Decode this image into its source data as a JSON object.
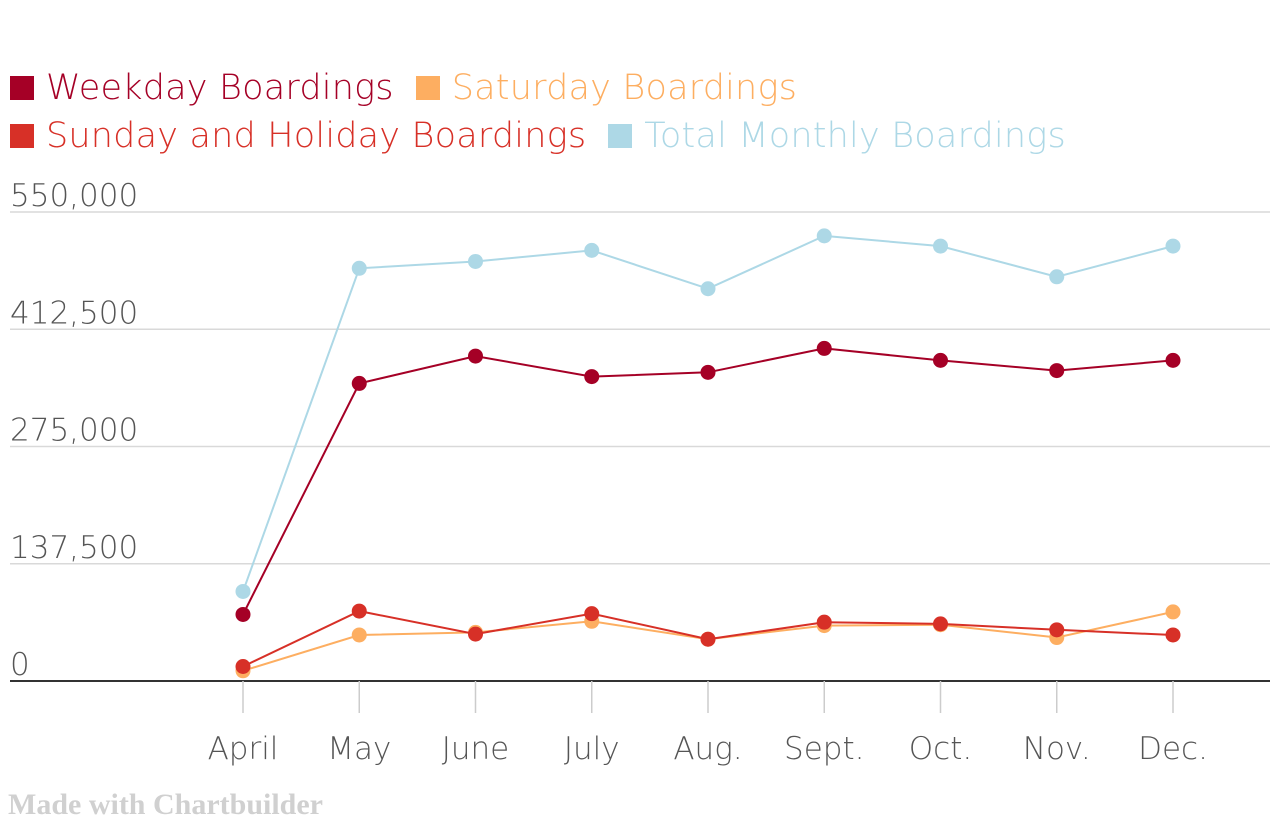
{
  "chart_data": {
    "type": "line",
    "title": "",
    "xlabel": "",
    "ylabel": "",
    "categories": [
      "April",
      "May",
      "June",
      "July",
      "Aug.",
      "Sept.",
      "Oct.",
      "Nov.",
      "Dec."
    ],
    "ylim": [
      0,
      550000
    ],
    "yticks": [
      0,
      137500,
      275000,
      412500,
      550000
    ],
    "ytick_labels": [
      "0",
      "137,500",
      "275,000",
      "412,500",
      "550,000"
    ],
    "grid": true,
    "legend_position": "top-left",
    "series": [
      {
        "name": "Total Monthly Boardings",
        "color": "#add8e6",
        "values": [
          105000,
          484000,
          492000,
          505000,
          460000,
          522000,
          510000,
          474000,
          510000
        ]
      },
      {
        "name": "Weekday Boardings",
        "color": "#a50026",
        "values": [
          78000,
          349000,
          381000,
          357000,
          362000,
          390000,
          376000,
          364000,
          376000
        ]
      },
      {
        "name": "Saturday Boardings",
        "color": "#fdae61",
        "values": [
          12000,
          54000,
          57000,
          70000,
          49000,
          65000,
          66000,
          51000,
          81000
        ]
      },
      {
        "name": "Sunday and Holiday Boardings",
        "color": "#d73027",
        "values": [
          17000,
          82000,
          55000,
          79000,
          49000,
          69000,
          67000,
          60000,
          54000
        ]
      }
    ]
  },
  "legend": {
    "rows": [
      [
        {
          "label": "Weekday Boardings",
          "color": "#a50026"
        },
        {
          "label": "Saturday Boardings",
          "color": "#fdae61"
        }
      ],
      [
        {
          "label": "Sunday and Holiday Boardings",
          "color": "#d73027"
        },
        {
          "label": "Total Monthly Boardings",
          "color": "#add8e6"
        }
      ]
    ]
  },
  "credit": "Made with Chartbuilder"
}
